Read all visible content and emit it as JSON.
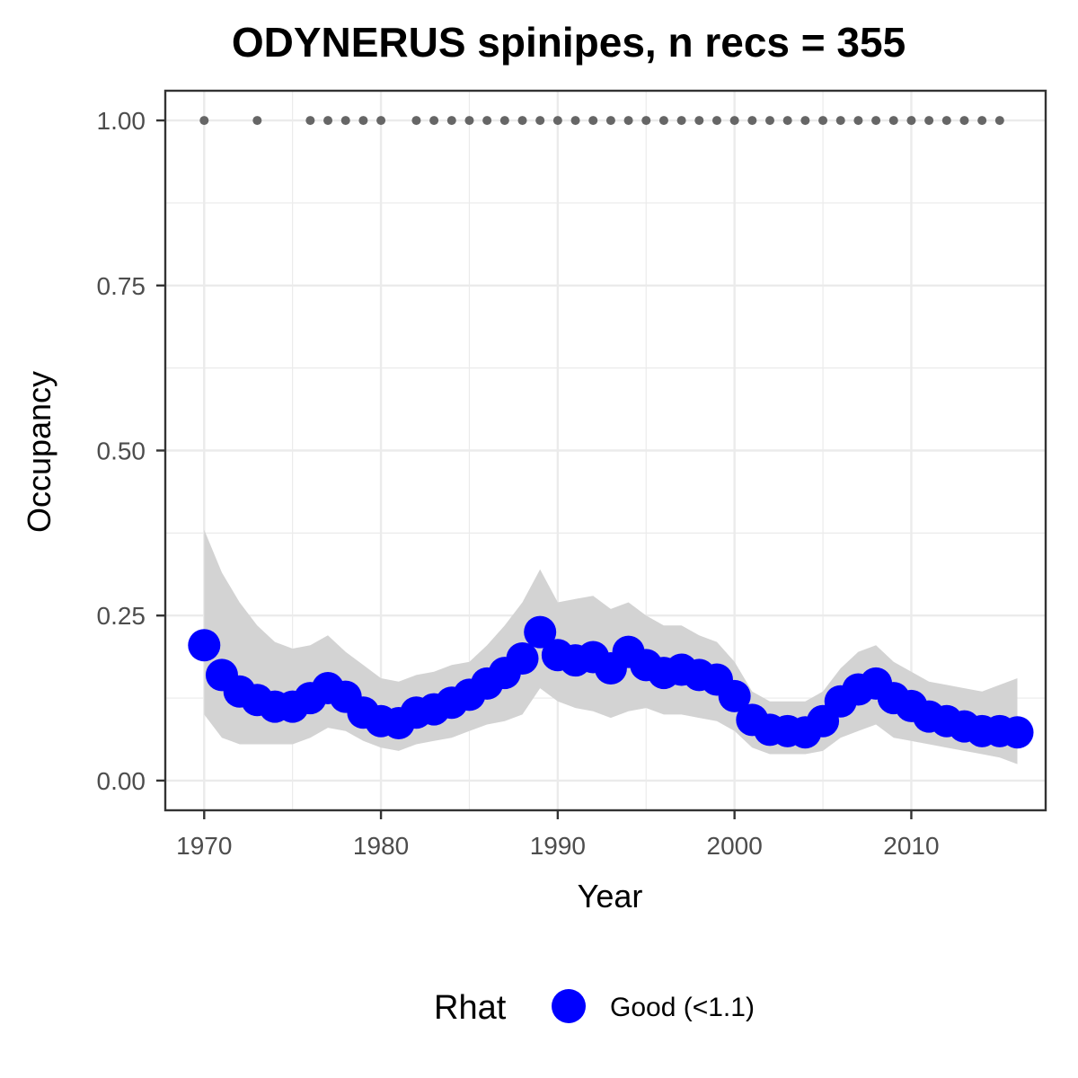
{
  "chart_data": {
    "type": "line",
    "title": "ODYNERUS spinipes, n recs = 355",
    "xlabel": "Year",
    "ylabel": "Occupancy",
    "xlim": [
      1967.8,
      2017.6
    ],
    "ylim": [
      -0.045,
      1.045
    ],
    "x_ticks": [
      1970,
      1980,
      1990,
      2000,
      2010
    ],
    "y_ticks": [
      0.0,
      0.25,
      0.5,
      0.75,
      1.0
    ],
    "x_tick_labels": [
      "1970",
      "1980",
      "1990",
      "2000",
      "2010"
    ],
    "y_tick_labels": [
      "0.00",
      "0.25",
      "0.50",
      "0.75",
      "1.00"
    ],
    "grid": true,
    "legend": {
      "title": "Rhat",
      "position": "bottom",
      "entries": [
        {
          "label": "Good (<1.1)",
          "color": "#0000ff"
        }
      ]
    },
    "colors": {
      "points": "#0000ff",
      "ribbon": "#d3d3d3",
      "records": "#666666",
      "grid": "#ebebeb",
      "panel_border": "#333333"
    },
    "series": [
      {
        "type": "scatter",
        "x": [
          1970,
          1971,
          1972,
          1973,
          1974,
          1975,
          1976,
          1977,
          1978,
          1979,
          1980,
          1981,
          1982,
          1983,
          1984,
          1985,
          1986,
          1987,
          1988,
          1989,
          1990,
          1991,
          1992,
          1993,
          1994,
          1995,
          1996,
          1997,
          1998,
          1999,
          2000,
          2001,
          2002,
          2003,
          2004,
          2005,
          2006,
          2007,
          2008,
          2009,
          2010,
          2011,
          2012,
          2013,
          2014,
          2015,
          2016
        ],
        "y": [
          0.205,
          0.16,
          0.135,
          0.122,
          0.112,
          0.112,
          0.125,
          0.14,
          0.127,
          0.103,
          0.09,
          0.087,
          0.103,
          0.108,
          0.118,
          0.13,
          0.147,
          0.163,
          0.185,
          0.225,
          0.19,
          0.182,
          0.187,
          0.17,
          0.195,
          0.175,
          0.163,
          0.168,
          0.16,
          0.153,
          0.128,
          0.092,
          0.077,
          0.075,
          0.073,
          0.09,
          0.12,
          0.138,
          0.147,
          0.125,
          0.113,
          0.097,
          0.09,
          0.082,
          0.075,
          0.075,
          0.073
        ]
      },
      {
        "type": "area",
        "x": [
          1970,
          1971,
          1972,
          1973,
          1974,
          1975,
          1976,
          1977,
          1978,
          1979,
          1980,
          1981,
          1982,
          1983,
          1984,
          1985,
          1986,
          1987,
          1988,
          1989,
          1990,
          1991,
          1992,
          1993,
          1994,
          1995,
          1996,
          1997,
          1998,
          1999,
          2000,
          2001,
          2002,
          2003,
          2004,
          2005,
          2006,
          2007,
          2008,
          2009,
          2010,
          2011,
          2012,
          2013,
          2014,
          2015,
          2016
        ],
        "lower": [
          0.1,
          0.065,
          0.055,
          0.055,
          0.055,
          0.055,
          0.065,
          0.08,
          0.075,
          0.06,
          0.05,
          0.045,
          0.055,
          0.06,
          0.065,
          0.075,
          0.085,
          0.09,
          0.1,
          0.14,
          0.12,
          0.11,
          0.105,
          0.095,
          0.105,
          0.11,
          0.1,
          0.1,
          0.095,
          0.09,
          0.075,
          0.05,
          0.04,
          0.04,
          0.04,
          0.045,
          0.065,
          0.075,
          0.085,
          0.065,
          0.06,
          0.055,
          0.05,
          0.045,
          0.04,
          0.035,
          0.025
        ],
        "upper": [
          0.38,
          0.315,
          0.27,
          0.235,
          0.21,
          0.2,
          0.205,
          0.22,
          0.195,
          0.175,
          0.155,
          0.15,
          0.16,
          0.165,
          0.175,
          0.18,
          0.205,
          0.235,
          0.27,
          0.32,
          0.27,
          0.275,
          0.28,
          0.26,
          0.27,
          0.25,
          0.235,
          0.235,
          0.22,
          0.21,
          0.18,
          0.135,
          0.12,
          0.12,
          0.12,
          0.135,
          0.17,
          0.195,
          0.205,
          0.18,
          0.165,
          0.15,
          0.145,
          0.14,
          0.135,
          0.145,
          0.155
        ]
      },
      {
        "type": "scatter",
        "name": "records",
        "x": [
          1970,
          1973,
          1976,
          1977,
          1978,
          1979,
          1980,
          1982,
          1983,
          1984,
          1985,
          1986,
          1987,
          1988,
          1989,
          1990,
          1991,
          1992,
          1993,
          1994,
          1995,
          1996,
          1997,
          1998,
          1999,
          2000,
          2001,
          2002,
          2003,
          2004,
          2005,
          2006,
          2007,
          2008,
          2009,
          2010,
          2011,
          2012,
          2013,
          2014,
          2015
        ],
        "y": [
          1,
          1,
          1,
          1,
          1,
          1,
          1,
          1,
          1,
          1,
          1,
          1,
          1,
          1,
          1,
          1,
          1,
          1,
          1,
          1,
          1,
          1,
          1,
          1,
          1,
          1,
          1,
          1,
          1,
          1,
          1,
          1,
          1,
          1,
          1,
          1,
          1,
          1,
          1,
          1,
          1
        ]
      }
    ]
  }
}
